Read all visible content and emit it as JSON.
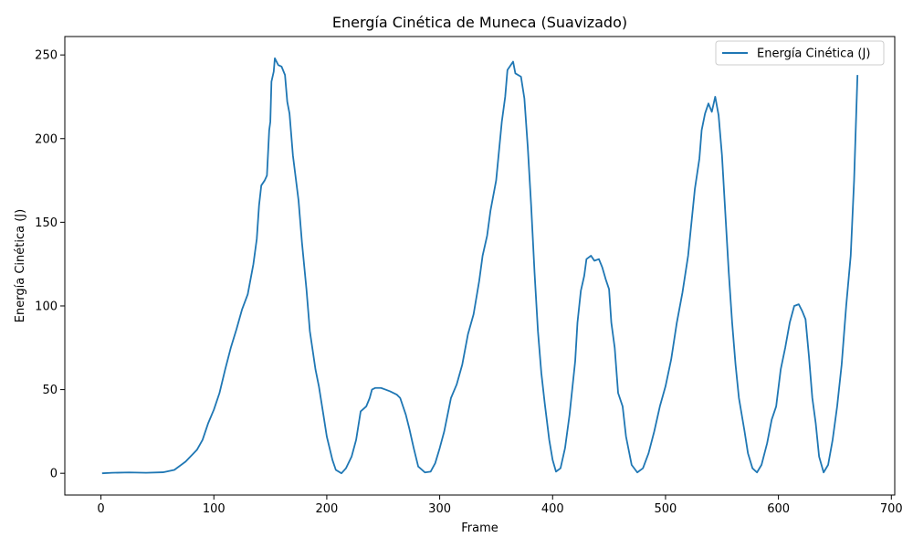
{
  "chart_data": {
    "type": "line",
    "title": "Energía Cinética de Muneca (Suavizado)",
    "xlabel": "Frame",
    "ylabel": "Energía Cinética (J)",
    "xlim": [
      -32,
      703
    ],
    "ylim": [
      -13,
      261
    ],
    "x_ticks": [
      0,
      100,
      200,
      300,
      400,
      500,
      600,
      700
    ],
    "y_ticks": [
      0,
      50,
      100,
      150,
      200,
      250
    ],
    "grid": false,
    "legend_position": "top-right",
    "series": [
      {
        "name": "Energía Cinética (J)",
        "color": "#1f77b4",
        "points": [
          [
            1,
            0
          ],
          [
            10,
            0.3
          ],
          [
            25,
            0.5
          ],
          [
            40,
            0.3
          ],
          [
            55,
            0.6
          ],
          [
            65,
            2
          ],
          [
            75,
            7
          ],
          [
            85,
            14
          ],
          [
            90,
            20
          ],
          [
            95,
            30
          ],
          [
            100,
            38
          ],
          [
            105,
            48
          ],
          [
            110,
            62
          ],
          [
            115,
            75
          ],
          [
            120,
            86
          ],
          [
            125,
            98
          ],
          [
            130,
            107
          ],
          [
            135,
            125
          ],
          [
            138,
            140
          ],
          [
            140,
            160
          ],
          [
            142,
            172
          ],
          [
            145,
            175
          ],
          [
            147,
            178
          ],
          [
            149,
            205
          ],
          [
            150,
            210
          ],
          [
            151,
            234
          ],
          [
            153,
            240
          ],
          [
            154,
            248
          ],
          [
            157,
            244
          ],
          [
            160,
            243
          ],
          [
            163,
            238
          ],
          [
            165,
            222
          ],
          [
            167,
            215
          ],
          [
            170,
            190
          ],
          [
            175,
            163
          ],
          [
            178,
            138
          ],
          [
            182,
            110
          ],
          [
            185,
            85
          ],
          [
            190,
            62
          ],
          [
            193,
            52
          ],
          [
            197,
            35
          ],
          [
            200,
            22
          ],
          [
            205,
            8
          ],
          [
            208,
            2
          ],
          [
            213,
            0
          ],
          [
            217,
            3
          ],
          [
            222,
            10
          ],
          [
            226,
            20
          ],
          [
            230,
            37
          ],
          [
            235,
            40
          ],
          [
            238,
            45
          ],
          [
            240,
            50
          ],
          [
            243,
            51
          ],
          [
            248,
            51
          ],
          [
            252,
            50
          ],
          [
            256,
            49
          ],
          [
            262,
            47
          ],
          [
            265,
            45
          ],
          [
            270,
            35
          ],
          [
            273,
            27
          ],
          [
            277,
            15
          ],
          [
            281,
            4
          ],
          [
            287,
            0.5
          ],
          [
            292,
            1
          ],
          [
            296,
            6
          ],
          [
            300,
            15
          ],
          [
            304,
            25
          ],
          [
            307,
            35
          ],
          [
            310,
            45
          ],
          [
            315,
            53
          ],
          [
            320,
            65
          ],
          [
            325,
            83
          ],
          [
            330,
            95
          ],
          [
            335,
            115
          ],
          [
            338,
            130
          ],
          [
            342,
            142
          ],
          [
            345,
            157
          ],
          [
            350,
            175
          ],
          [
            355,
            210
          ],
          [
            358,
            225
          ],
          [
            360,
            241
          ],
          [
            362,
            243
          ],
          [
            365,
            246
          ],
          [
            367,
            239
          ],
          [
            372,
            237
          ],
          [
            375,
            224
          ],
          [
            378,
            195
          ],
          [
            381,
            160
          ],
          [
            384,
            120
          ],
          [
            387,
            85
          ],
          [
            390,
            60
          ],
          [
            393,
            42
          ],
          [
            397,
            20
          ],
          [
            400,
            8
          ],
          [
            403,
            1
          ],
          [
            407,
            3
          ],
          [
            411,
            15
          ],
          [
            415,
            35
          ],
          [
            420,
            67
          ],
          [
            422,
            90
          ],
          [
            425,
            109
          ],
          [
            428,
            118
          ],
          [
            430,
            128
          ],
          [
            434,
            130
          ],
          [
            437,
            127
          ],
          [
            441,
            128
          ],
          [
            444,
            123
          ],
          [
            447,
            116
          ],
          [
            450,
            110
          ],
          [
            452,
            90
          ],
          [
            455,
            75
          ],
          [
            458,
            48
          ],
          [
            462,
            40
          ],
          [
            465,
            22
          ],
          [
            470,
            5
          ],
          [
            475,
            0.5
          ],
          [
            480,
            3
          ],
          [
            485,
            12
          ],
          [
            490,
            25
          ],
          [
            495,
            40
          ],
          [
            500,
            52
          ],
          [
            505,
            68
          ],
          [
            510,
            90
          ],
          [
            515,
            108
          ],
          [
            520,
            130
          ],
          [
            523,
            150
          ],
          [
            526,
            170
          ],
          [
            530,
            188
          ],
          [
            532,
            205
          ],
          [
            535,
            215
          ],
          [
            538,
            221
          ],
          [
            541,
            216
          ],
          [
            544,
            225
          ],
          [
            547,
            214
          ],
          [
            550,
            190
          ],
          [
            553,
            155
          ],
          [
            556,
            120
          ],
          [
            559,
            90
          ],
          [
            562,
            65
          ],
          [
            565,
            45
          ],
          [
            570,
            25
          ],
          [
            573,
            12
          ],
          [
            577,
            3
          ],
          [
            581,
            0.5
          ],
          [
            585,
            5
          ],
          [
            590,
            18
          ],
          [
            594,
            32
          ],
          [
            598,
            40
          ],
          [
            602,
            62
          ],
          [
            606,
            75
          ],
          [
            610,
            90
          ],
          [
            614,
            100
          ],
          [
            618,
            101
          ],
          [
            621,
            97
          ],
          [
            624,
            92
          ],
          [
            627,
            70
          ],
          [
            630,
            45
          ],
          [
            633,
            30
          ],
          [
            636,
            10
          ],
          [
            640,
            0.5
          ],
          [
            644,
            5
          ],
          [
            648,
            20
          ],
          [
            652,
            40
          ],
          [
            656,
            65
          ],
          [
            660,
            100
          ],
          [
            664,
            130
          ],
          [
            667,
            175
          ],
          [
            670,
            238
          ]
        ]
      }
    ]
  }
}
